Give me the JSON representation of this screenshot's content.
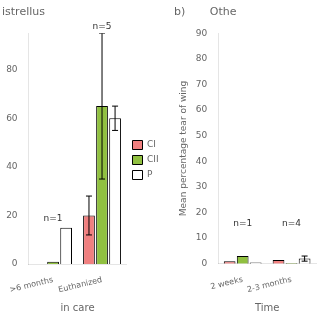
{
  "chart_data": [
    {
      "type": "bar",
      "title": "istrellus",
      "xlabel": "in care",
      "categories": [
        ">6 months",
        "Euthanized"
      ],
      "series": [
        {
          "name": "CI",
          "color": "#f08080",
          "values": [
            0,
            20
          ],
          "errors": [
            0,
            8
          ]
        },
        {
          "name": "CII",
          "color": "#90c040",
          "values": [
            1,
            65
          ],
          "errors": [
            0,
            30
          ]
        },
        {
          "name": "P",
          "color": "#ffffff",
          "values": [
            15,
            60
          ],
          "errors": [
            0,
            5
          ]
        }
      ],
      "ylim": [
        0,
        95
      ],
      "yticks": [
        0,
        20,
        40,
        60,
        80
      ],
      "grid": false,
      "legend": "right",
      "annotations": [
        {
          "text": "n=1",
          "category": ">6 months",
          "y": 17
        },
        {
          "text": "n=5",
          "category": "Euthanized",
          "y": 96
        }
      ]
    },
    {
      "type": "bar",
      "title": "b)       Othe",
      "xlabel": "Time",
      "ylabel": "Mean percentage tear of wing",
      "categories": [
        "2 weeks",
        "2-3 months"
      ],
      "series": [
        {
          "name": "CI",
          "color": "#f08080",
          "values": [
            1.0,
            1.5
          ],
          "errors": [
            0,
            0
          ]
        },
        {
          "name": "CII",
          "color": "#90c040",
          "values": [
            3.0,
            0.3
          ],
          "errors": [
            0,
            0
          ]
        },
        {
          "name": "P",
          "color": "#ffffff",
          "values": [
            0.5,
            2.0
          ],
          "errors": [
            0,
            1.0
          ]
        }
      ],
      "ylim": [
        0,
        90
      ],
      "yticks": [
        0,
        10,
        20,
        30,
        40,
        50,
        60,
        70,
        80,
        90
      ],
      "grid": false,
      "annotations": [
        {
          "text": "n=1",
          "category": "2 weeks",
          "y": 14
        },
        {
          "text": "n=4",
          "category": "2-3 months",
          "y": 14
        }
      ]
    }
  ]
}
